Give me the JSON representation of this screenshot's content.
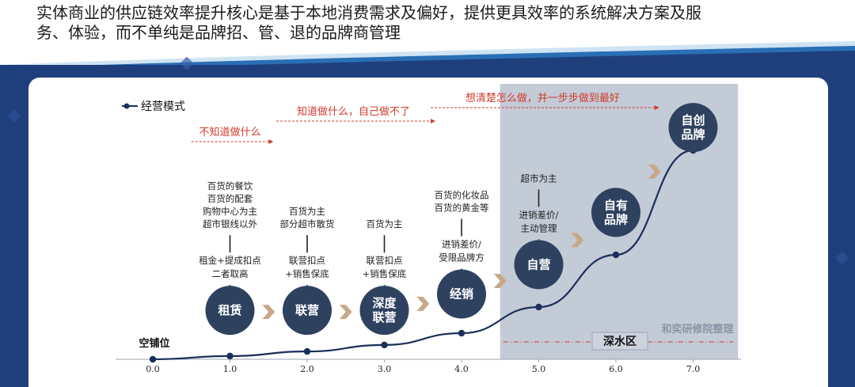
{
  "header": {
    "title_lines": [
      "实体商业的供应链效率提升核心是基于本地消费需求及偏好，提供更具效率的系统解决方案及服",
      "务、体验，而不单纯是品牌招、管、退的品牌商管理"
    ]
  },
  "colors": {
    "navy": "#1f3f7c",
    "node": "#2e4260",
    "curve": "#1b2f5a",
    "red": "#d23b2c",
    "shade": "#b9c2d0",
    "chevron": "#c9a88a"
  },
  "chart_data": {
    "type": "line",
    "legend": "经营模式",
    "x": [
      0,
      1,
      2,
      3,
      4,
      5,
      6,
      7
    ],
    "xticks": [
      "0.0",
      "1.0",
      "2.0",
      "3.0",
      "4.0",
      "5.0",
      "6.0",
      "7.0"
    ],
    "xlim": [
      0,
      7.6
    ],
    "y": [
      0.0,
      0.5,
      1.2,
      2.2,
      4.0,
      8.0,
      16.0,
      32.0
    ],
    "start_label": "空铺位",
    "stages": [
      {
        "label": "租赁",
        "x": 1.0,
        "y": 7.5,
        "lower": "租金+提成扣点\n二者取高",
        "upper": "百货的餐饮\n百货的配套\n购物中心为主\n超市银线以外"
      },
      {
        "label": "联营",
        "x": 2.0,
        "y": 7.5,
        "lower": "联营扣点\n+销售保底",
        "upper": "百货为主\n部分超市散货"
      },
      {
        "label": "深度\n联营",
        "x": 3.0,
        "y": 7.5,
        "lower": "联营扣点\n+销售保底",
        "upper": "百货为主"
      },
      {
        "label": "经销",
        "x": 4.0,
        "y": 10.0,
        "lower": "进销差价/\n受限品牌方",
        "upper": "百货的化妆品\n百货的黄金等"
      },
      {
        "label": "自营",
        "x": 5.0,
        "y": 14.5,
        "lower": "进销差价/\n主动管理",
        "upper": "超市为主"
      },
      {
        "label": "自有\n品牌",
        "x": 6.0,
        "y": 22.5,
        "lower": "",
        "upper": ""
      },
      {
        "label": "自创\n品牌",
        "x": 7.0,
        "y": 35.5,
        "lower": "",
        "upper": ""
      }
    ],
    "phase_notes": [
      {
        "text": "不知道做什么",
        "x_from": 0.5,
        "x_to": 1.5
      },
      {
        "text": "知道做什么，自己做不了",
        "x_from": 1.6,
        "x_to": 3.6
      },
      {
        "text": "想清楚怎么做，并一步步做到最好",
        "x_from": 3.6,
        "x_to": 6.5
      }
    ],
    "deep_water": {
      "label": "深水区",
      "x_from": 4.5,
      "x_to": 7.5
    },
    "watermark": "和奕研修院整理"
  }
}
